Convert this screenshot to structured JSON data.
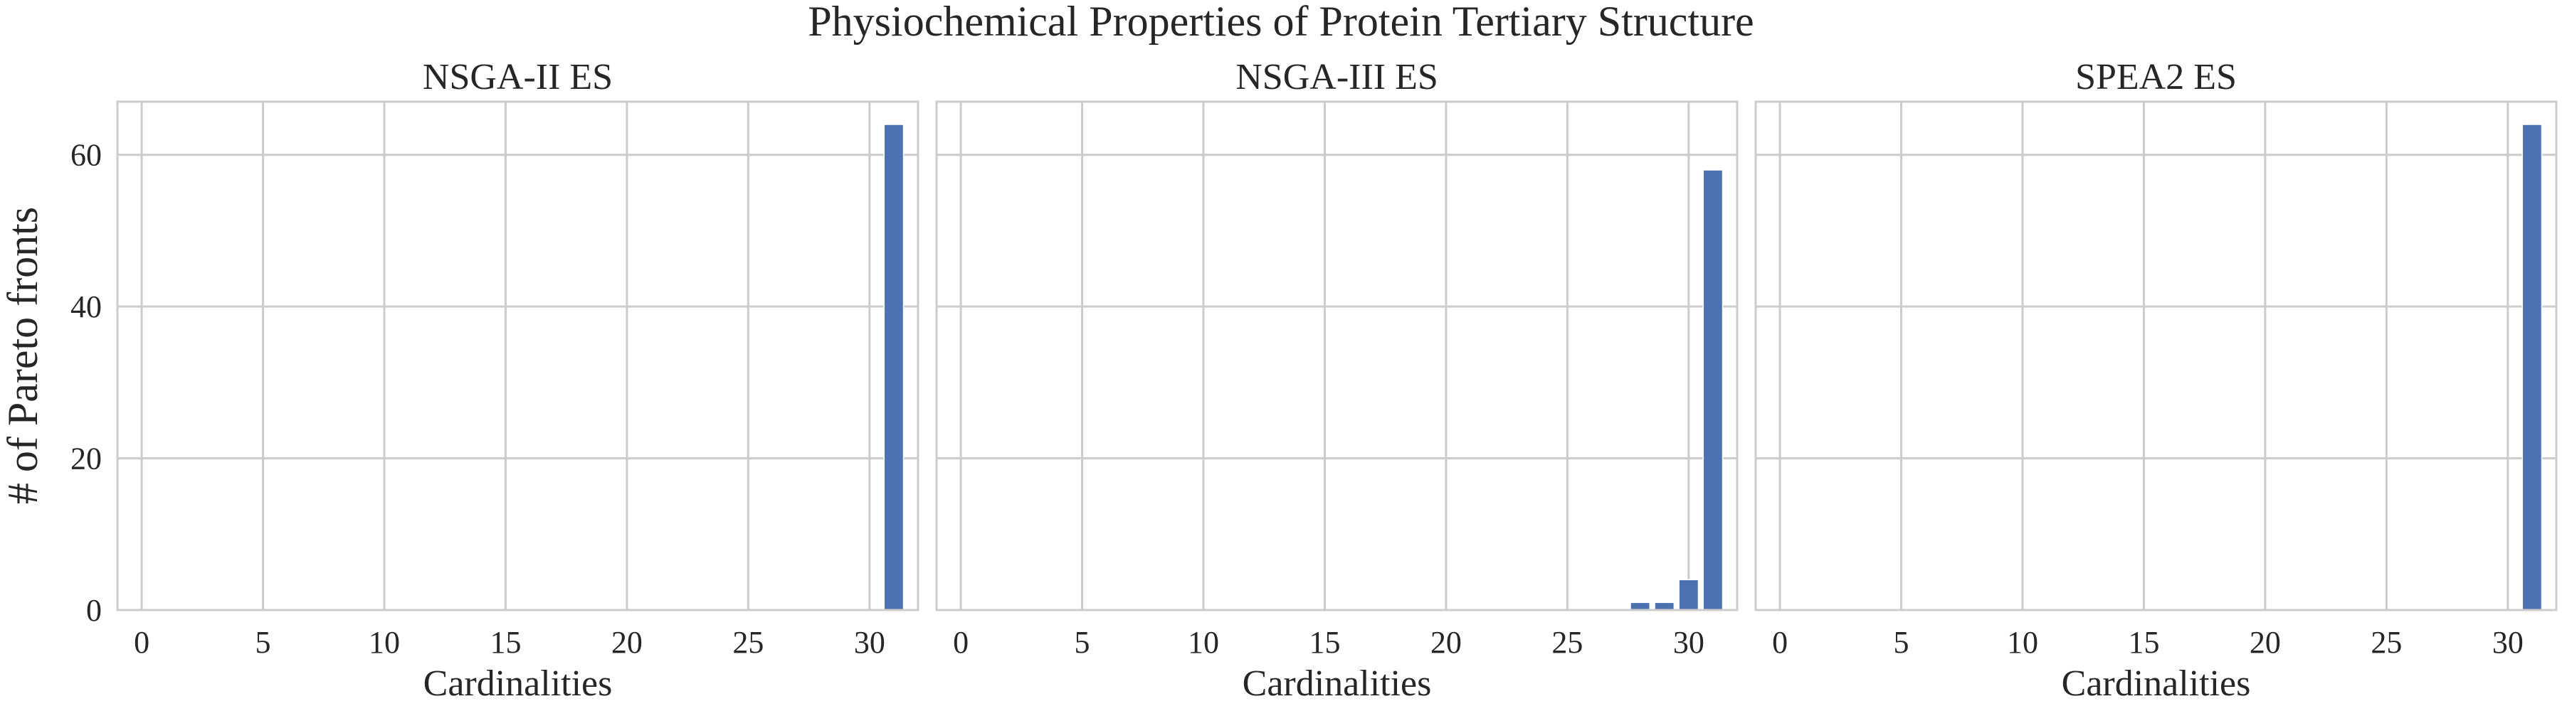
{
  "figure": {
    "suptitle": "Physiochemical Properties of Protein Tertiary Structure",
    "shared_ylabel": "# of Pareto fronts"
  },
  "chart_data": [
    {
      "type": "bar",
      "title": "NSGA-II ES",
      "xlabel": "Cardinalities",
      "ylabel": "# of Pareto fronts",
      "x": [
        31
      ],
      "values": [
        64
      ],
      "xlim": [
        -1,
        32
      ],
      "ylim": [
        0,
        67
      ],
      "xticks": [
        "0",
        "5",
        "10",
        "15",
        "20",
        "25",
        "30"
      ],
      "yticks": [
        "0",
        "20",
        "40",
        "60"
      ],
      "color": "#4c72b0",
      "grid": true
    },
    {
      "type": "bar",
      "title": "NSGA-III ES",
      "xlabel": "Cardinalities",
      "ylabel": "",
      "x": [
        28,
        29,
        30,
        31
      ],
      "values": [
        1,
        1,
        4,
        58
      ],
      "xlim": [
        -1,
        32
      ],
      "ylim": [
        0,
        67
      ],
      "xticks": [
        "0",
        "5",
        "10",
        "15",
        "20",
        "25",
        "30"
      ],
      "yticks": [],
      "color": "#4c72b0",
      "grid": true
    },
    {
      "type": "bar",
      "title": "SPEA2 ES",
      "xlabel": "Cardinalities",
      "ylabel": "",
      "x": [
        31
      ],
      "values": [
        64
      ],
      "xlim": [
        -1,
        32
      ],
      "ylim": [
        0,
        67
      ],
      "xticks": [
        "0",
        "5",
        "10",
        "15",
        "20",
        "25",
        "30"
      ],
      "yticks": [],
      "color": "#4c72b0",
      "grid": true
    }
  ]
}
